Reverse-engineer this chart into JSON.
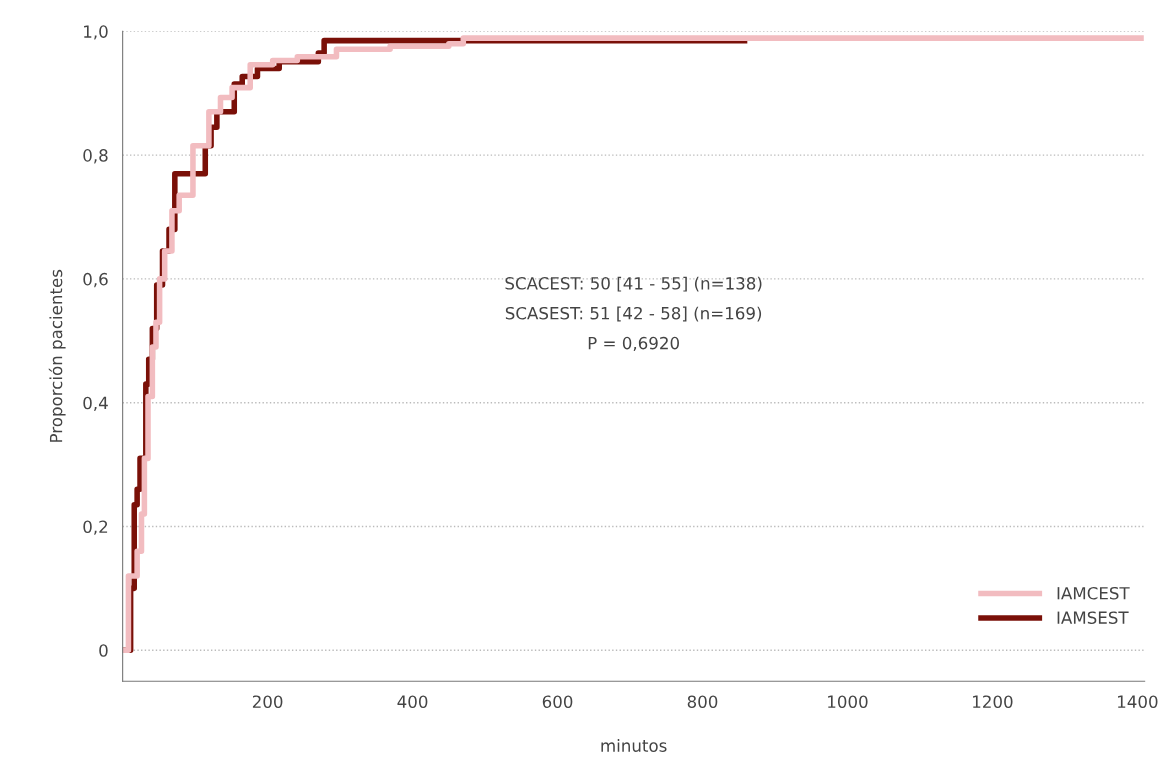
{
  "chart_data": {
    "type": "step",
    "xlabel": "minutos",
    "ylabel": "Proporción pacientes",
    "xlim": [
      0,
      1410
    ],
    "xticks": [
      200,
      400,
      600,
      800,
      1000,
      1200,
      1400
    ],
    "ylim": [
      -0.05,
      1.0
    ],
    "yticks": [
      {
        "value": 0,
        "label": "0"
      },
      {
        "value": 0.2,
        "label": "0,2"
      },
      {
        "value": 0.4,
        "label": "0,4"
      },
      {
        "value": 0.6,
        "label": "0,6"
      },
      {
        "value": 0.8,
        "label": "0,8"
      },
      {
        "value": 1.0,
        "label": "1,0"
      }
    ],
    "grid": "y",
    "legend": "bottom right",
    "line_style": "solid",
    "marker": "none",
    "series": [
      {
        "name": "IAMCEST",
        "color": "#f2bcc0",
        "x": [
          4,
          8,
          20,
          26,
          30,
          35,
          41,
          46,
          51,
          58,
          68,
          78,
          97,
          119,
          135,
          151,
          176,
          207,
          241,
          295,
          369,
          450,
          470,
          1405
        ],
        "values": [
          0,
          0.12,
          0.16,
          0.22,
          0.31,
          0.41,
          0.49,
          0.53,
          0.6,
          0.645,
          0.71,
          0.735,
          0.815,
          0.87,
          0.893,
          0.909,
          0.946,
          0.953,
          0.959,
          0.971,
          0.976,
          0.98,
          0.989,
          0.989
        ]
      },
      {
        "name": "IAMSEST",
        "color": "#7a1008",
        "x": [
          0,
          11,
          16,
          20,
          24,
          32,
          36,
          41,
          47,
          55,
          64,
          72,
          114,
          122,
          130,
          154,
          165,
          186,
          216,
          270,
          278,
          858
        ],
        "values": [
          0,
          0.1,
          0.235,
          0.26,
          0.31,
          0.43,
          0.47,
          0.52,
          0.59,
          0.645,
          0.68,
          0.77,
          0.815,
          0.845,
          0.87,
          0.915,
          0.927,
          0.94,
          0.951,
          0.965,
          0.985,
          0.985
        ]
      }
    ],
    "annotations": [
      "SCACEST: 50 [41 - 55] (n=138)",
      "SCASEST: 51 [42 - 58] (n=169)",
      "P = 0,6920"
    ]
  }
}
